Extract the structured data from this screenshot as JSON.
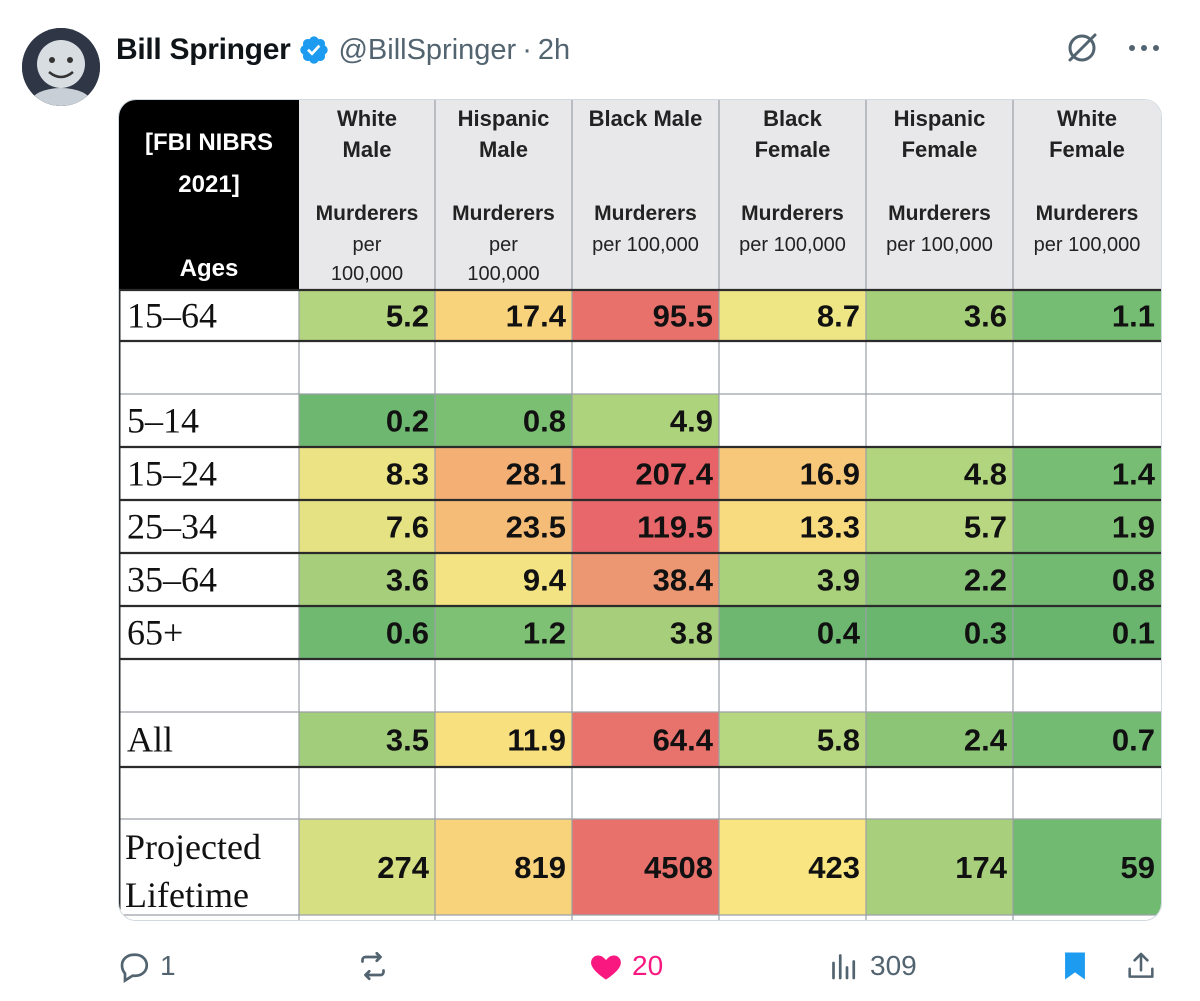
{
  "tweet": {
    "author_name": "Bill Springer",
    "handle": "@BillSpringer",
    "separator": "·",
    "time": "2h"
  },
  "icons": {
    "verified": "verified-badge-icon",
    "grok": "grok-icon",
    "more": "more-dots-icon",
    "reply": "reply-icon",
    "retweet": "retweet-icon",
    "like": "heart-icon",
    "views": "views-bar-icon",
    "bookmark": "bookmark-icon",
    "share": "share-icon"
  },
  "colors": {
    "verified": "#1d9bf0",
    "like": "#f91880",
    "bookmark": "#1d9bf0",
    "muted": "#536471"
  },
  "actions": {
    "replies": "1",
    "retweets": "",
    "likes": "20",
    "views": "309"
  },
  "chart_data": {
    "type": "table",
    "corner_label": [
      "[FBI NIBRS",
      "2021]",
      "Ages"
    ],
    "columns": [
      {
        "group": [
          "White",
          "Male"
        ],
        "unit": [
          "Murderers",
          "per",
          "100,000"
        ]
      },
      {
        "group": [
          "Hispanic",
          "Male"
        ],
        "unit": [
          "Murderers",
          "per",
          "100,000"
        ]
      },
      {
        "group": [
          "Black Male"
        ],
        "unit": [
          "Murderers",
          "per 100,000"
        ]
      },
      {
        "group": [
          "Black",
          "Female"
        ],
        "unit": [
          "Murderers",
          "per 100,000"
        ]
      },
      {
        "group": [
          "Hispanic",
          "Female"
        ],
        "unit": [
          "Murderers",
          "per 100,000"
        ]
      },
      {
        "group": [
          "White",
          "Female"
        ],
        "unit": [
          "Murderers",
          "per 100,000"
        ]
      }
    ],
    "rows": [
      {
        "label": [
          "15–64"
        ],
        "values": [
          "5.2",
          "17.4",
          "95.5",
          "8.7",
          "3.6",
          "1.1"
        ],
        "colors": [
          "#b3d57f",
          "#f9d27c",
          "#e8716c",
          "#eee584",
          "#a6cf7a",
          "#76bd74"
        ]
      },
      {
        "label": [],
        "values": [
          "",
          "",
          "",
          "",
          "",
          ""
        ],
        "colors": [
          "#ffffff",
          "#ffffff",
          "#ffffff",
          "#ffffff",
          "#ffffff",
          "#ffffff"
        ]
      },
      {
        "label": [
          "5–14"
        ],
        "values": [
          "0.2",
          "0.8",
          "4.9",
          "",
          "",
          ""
        ],
        "colors": [
          "#6db770",
          "#7abf72",
          "#aed37d",
          "#ffffff",
          "#ffffff",
          "#ffffff"
        ]
      },
      {
        "label": [
          "15–24"
        ],
        "values": [
          "8.3",
          "28.1",
          "207.4",
          "16.9",
          "4.8",
          "1.4"
        ],
        "colors": [
          "#ebe384",
          "#f4b074",
          "#e86368",
          "#f8c87a",
          "#b1d47e",
          "#77bd73"
        ]
      },
      {
        "label": [
          "25–34"
        ],
        "values": [
          "7.6",
          "23.5",
          "119.5",
          "13.3",
          "5.7",
          "1.9"
        ],
        "colors": [
          "#e5e283",
          "#f5bc77",
          "#e8676a",
          "#f9db7f",
          "#b8d780",
          "#7cbf74"
        ]
      },
      {
        "label": [
          "35–64"
        ],
        "values": [
          "3.6",
          "9.4",
          "38.4",
          "3.9",
          "2.2",
          "0.8"
        ],
        "colors": [
          "#a7cf7b",
          "#f3e382",
          "#ec9772",
          "#a9d07b",
          "#85c276",
          "#72ba72"
        ]
      },
      {
        "label": [
          "65+"
        ],
        "values": [
          "0.6",
          "1.2",
          "3.8",
          "0.4",
          "0.3",
          "0.1"
        ],
        "colors": [
          "#70b971",
          "#7ec074",
          "#a7cf7b",
          "#6db770",
          "#6bb66f",
          "#69b56e"
        ]
      },
      {
        "label": [],
        "values": [
          "",
          "",
          "",
          "",
          "",
          ""
        ],
        "colors": [
          "#ffffff",
          "#ffffff",
          "#ffffff",
          "#ffffff",
          "#ffffff",
          "#ffffff"
        ]
      },
      {
        "label": [
          "All"
        ],
        "values": [
          "3.5",
          "11.9",
          "64.4",
          "5.8",
          "2.4",
          "0.7"
        ],
        "colors": [
          "#a2ce7b",
          "#f8e07f",
          "#e8726c",
          "#b6d67f",
          "#8dc577",
          "#73bb72"
        ]
      },
      {
        "label": [],
        "values": [
          "",
          "",
          "",
          "",
          "",
          ""
        ],
        "colors": [
          "#ffffff",
          "#ffffff",
          "#ffffff",
          "#ffffff",
          "#ffffff",
          "#ffffff"
        ]
      },
      {
        "label": [
          "Projected",
          "Lifetime"
        ],
        "values": [
          "274",
          "819",
          "4508",
          "423",
          "174",
          "59"
        ],
        "colors": [
          "#d7df83",
          "#f8d37c",
          "#e8716c",
          "#f9e581",
          "#a8d07c",
          "#70ba72"
        ]
      }
    ]
  }
}
